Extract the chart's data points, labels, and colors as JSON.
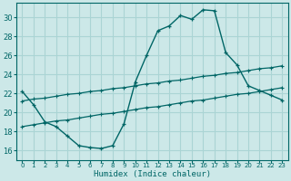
{
  "xlabel": "Humidex (Indice chaleur)",
  "bg_color": "#cce8e8",
  "grid_color": "#aad4d4",
  "line_color": "#006666",
  "x_ticks": [
    0,
    1,
    2,
    3,
    4,
    5,
    6,
    7,
    8,
    9,
    10,
    11,
    12,
    13,
    14,
    15,
    16,
    17,
    18,
    19,
    20,
    21,
    22,
    23
  ],
  "y_ticks": [
    16,
    18,
    20,
    22,
    24,
    26,
    28,
    30
  ],
  "ylim": [
    15.0,
    31.5
  ],
  "xlim": [
    -0.5,
    23.5
  ],
  "curve1_x": [
    0,
    1,
    2,
    3,
    4,
    5,
    6,
    7,
    8,
    9,
    10,
    11,
    12,
    13,
    14,
    15,
    16,
    17,
    18,
    19,
    20,
    21,
    22,
    23
  ],
  "curve1_y": [
    22.2,
    20.8,
    19.0,
    18.5,
    17.5,
    16.5,
    16.3,
    16.2,
    16.5,
    18.8,
    23.2,
    26.0,
    28.6,
    29.1,
    30.2,
    29.8,
    30.8,
    30.7,
    26.3,
    25.0,
    22.8,
    22.3,
    21.8,
    21.3
  ],
  "curve2_x": [
    0,
    1,
    2,
    3,
    4,
    5,
    6,
    7,
    8,
    9,
    10,
    11,
    12,
    13,
    14,
    15,
    16,
    17,
    18,
    19,
    20,
    21,
    22,
    23
  ],
  "curve2_y": [
    21.2,
    21.4,
    21.5,
    21.7,
    21.9,
    22.0,
    22.2,
    22.3,
    22.5,
    22.6,
    22.8,
    23.0,
    23.1,
    23.3,
    23.4,
    23.6,
    23.8,
    23.9,
    24.1,
    24.2,
    24.4,
    24.6,
    24.7,
    24.9
  ],
  "curve3_x": [
    0,
    1,
    2,
    3,
    4,
    5,
    6,
    7,
    8,
    9,
    10,
    11,
    12,
    13,
    14,
    15,
    16,
    17,
    18,
    19,
    20,
    21,
    22,
    23
  ],
  "curve3_y": [
    18.5,
    18.7,
    18.9,
    19.1,
    19.2,
    19.4,
    19.6,
    19.8,
    19.9,
    20.1,
    20.3,
    20.5,
    20.6,
    20.8,
    21.0,
    21.2,
    21.3,
    21.5,
    21.7,
    21.9,
    22.0,
    22.2,
    22.4,
    22.6
  ]
}
